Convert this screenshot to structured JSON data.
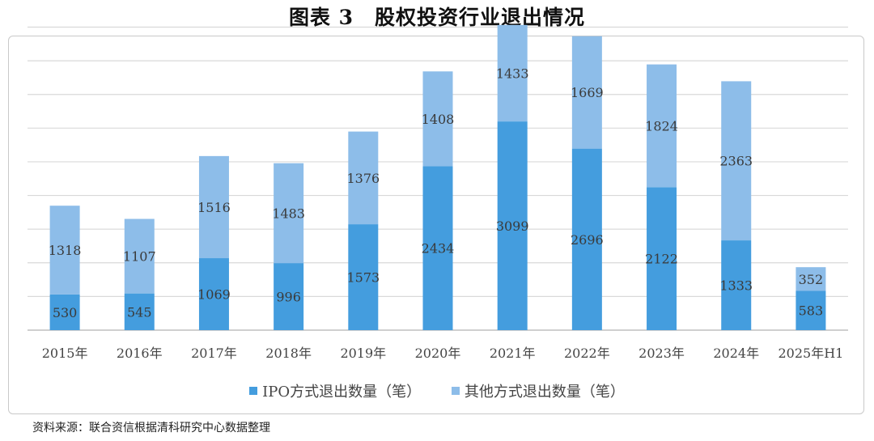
{
  "header": {
    "figure_no": "图表 3",
    "title": "股权投资行业退出情况"
  },
  "colors": {
    "ipo": "#449dde",
    "other": "#8dbde9",
    "grid": "#d9d9d9",
    "axis": "#bfbfbf"
  },
  "chart_data": {
    "type": "bar",
    "stacked": true,
    "title": "股权投资行业退出情况",
    "categories": [
      "2015年",
      "2016年",
      "2017年",
      "2018年",
      "2019年",
      "2020年",
      "2021年",
      "2022年",
      "2023年",
      "2024年",
      "2025年H1"
    ],
    "series": [
      {
        "name": "IPO方式退出数量（笔）",
        "values": [
          530,
          545,
          1069,
          996,
          1573,
          2434,
          3099,
          2696,
          2122,
          1333,
          583
        ]
      },
      {
        "name": "其他方式退出数量（笔）",
        "values": [
          1318,
          1107,
          1516,
          1483,
          1376,
          1408,
          1433,
          1669,
          1824,
          2363,
          352
        ]
      }
    ],
    "ylim": [
      0,
      4500
    ],
    "ytick_step": 500,
    "grid": true,
    "legend": "bottom-center",
    "xlabel": "",
    "ylabel": ""
  },
  "legend": {
    "ipo_label": "IPO方式退出数量（笔）",
    "other_label": "其他方式退出数量（笔）"
  },
  "footer": {
    "source": "资料来源：联合资信根据清科研究中心数据整理"
  }
}
